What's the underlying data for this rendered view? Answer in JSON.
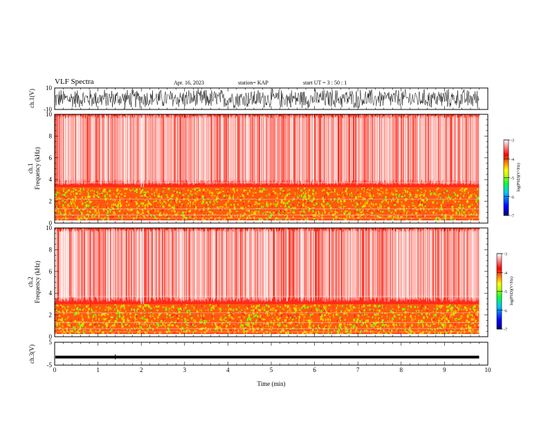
{
  "header": {
    "title": "VLF Spectra",
    "date": "Apr. 16, 2023",
    "station": "station= KAP",
    "start": "start  UT  =   3  : 50 : 1"
  },
  "colors": {
    "spectrogram_bg": "#ff2a1a",
    "band_yellow": "#ffd400",
    "band_green": "#7cff00",
    "waveform": "#000000",
    "colorbar": [
      "#00007f",
      "#0000ff",
      "#00c8ff",
      "#00ff40",
      "#b4ff00",
      "#ffff00",
      "#ff8000",
      "#ff0000",
      "#ffffff"
    ]
  },
  "chart_data": [
    {
      "type": "line",
      "id": "ch1-waveform",
      "ylabel": "ch.1(V)",
      "ylim": [
        -10,
        10
      ],
      "yticks": [
        "10",
        "-10"
      ],
      "xlim": [
        0,
        10
      ],
      "series": [
        {
          "values_description": "",
          "amplitude_range": [
            -10,
            10
          ]
        }
      ]
    },
    {
      "type": "heatmap",
      "id": "ch1-spectrogram",
      "ylabel": "ch.1\nFrequency (kHz)",
      "ylabel_top": "ch.1",
      "ylabel_main": "Frequency  (kHz)",
      "ylim": [
        0,
        10
      ],
      "yticks": [
        "0",
        "2",
        "4",
        "6",
        "8",
        "10"
      ],
      "xlim": [
        0,
        10
      ],
      "data_extent_min": 9.8,
      "intense_band_khz": [
        0.3,
        3.3
      ],
      "colorbar": {
        "label": "log(PSD)(V²/Hz)",
        "range": [
          -7,
          -3
        ],
        "ticks": [
          "-3",
          "-4",
          "-5",
          "-6",
          "-7"
        ]
      }
    },
    {
      "type": "heatmap",
      "id": "ch2-spectrogram",
      "ylabel_top": "ch.2",
      "ylabel_main": "Frequency  (kHz)",
      "ylim": [
        0,
        10
      ],
      "yticks": [
        "0",
        "2",
        "4",
        "6",
        "8",
        "10"
      ],
      "xlim": [
        0,
        10
      ],
      "data_extent_min": 9.8,
      "intense_band_khz": [
        0.3,
        3.0
      ],
      "colorbar": {
        "label": "log(PSD)(V²/Hz)",
        "range": [
          -7,
          -3
        ],
        "ticks": [
          "-3",
          "-4",
          "-5",
          "-6",
          "-7"
        ]
      }
    },
    {
      "type": "line",
      "id": "ch3-waveform",
      "ylabel": "ch.3(V)",
      "ylim": [
        -5,
        5
      ],
      "yticks": [
        "5",
        "-5"
      ],
      "xlim": [
        0,
        10
      ],
      "xlabel": "Time  (min)",
      "xticks": [
        "0",
        "1",
        "2",
        "3",
        "4",
        "5",
        "6",
        "7",
        "8",
        "9",
        "10"
      ],
      "series": [
        {
          "level_v": -1.5,
          "amplitude_v": 0.6
        }
      ]
    }
  ]
}
